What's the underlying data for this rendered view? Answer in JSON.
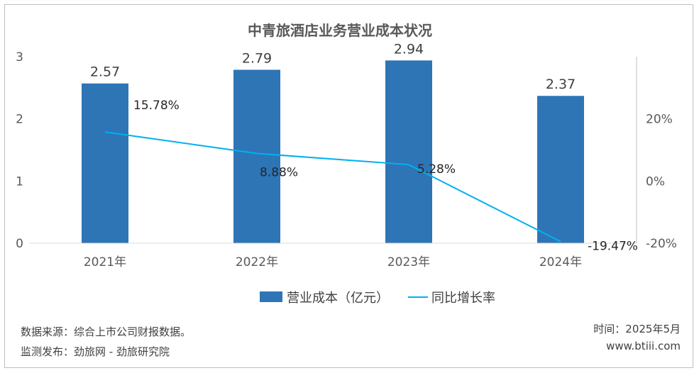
{
  "chart_data": {
    "type": "bar",
    "title": "中青旅酒店业务营业成本状况",
    "categories": [
      "2021年",
      "2022年",
      "2023年",
      "2024年"
    ],
    "series": [
      {
        "name": "营业成本（亿元）",
        "type": "bar",
        "axis": "left",
        "values": [
          2.57,
          2.79,
          2.94,
          2.37
        ],
        "labels": [
          "2.57",
          "2.79",
          "2.94",
          "2.37"
        ],
        "color": "#2e75b6"
      },
      {
        "name": "同比增长率",
        "type": "line",
        "axis": "right",
        "values": [
          15.78,
          8.88,
          5.28,
          -19.47
        ],
        "labels": [
          "15.78%",
          "8.88%",
          "5.28%",
          "-19.47%"
        ],
        "color": "#00b0f0"
      }
    ],
    "y_left": {
      "ticks": [
        0,
        1,
        2,
        3
      ],
      "tick_labels": [
        "0",
        "1",
        "2",
        "3"
      ],
      "range": [
        0,
        3
      ]
    },
    "y_right": {
      "ticks": [
        -20,
        0,
        20
      ],
      "tick_labels": [
        "-20%",
        "0%",
        "20%"
      ],
      "range": [
        -20,
        40
      ]
    },
    "grid": false,
    "legend_position": "bottom"
  },
  "footer": {
    "source": "数据来源：综合上市公司财报数据。",
    "monitor": "监测发布：劲旅网 - 劲旅研究院",
    "time": "时间：2025年5月",
    "site": "www.btiii.com"
  }
}
